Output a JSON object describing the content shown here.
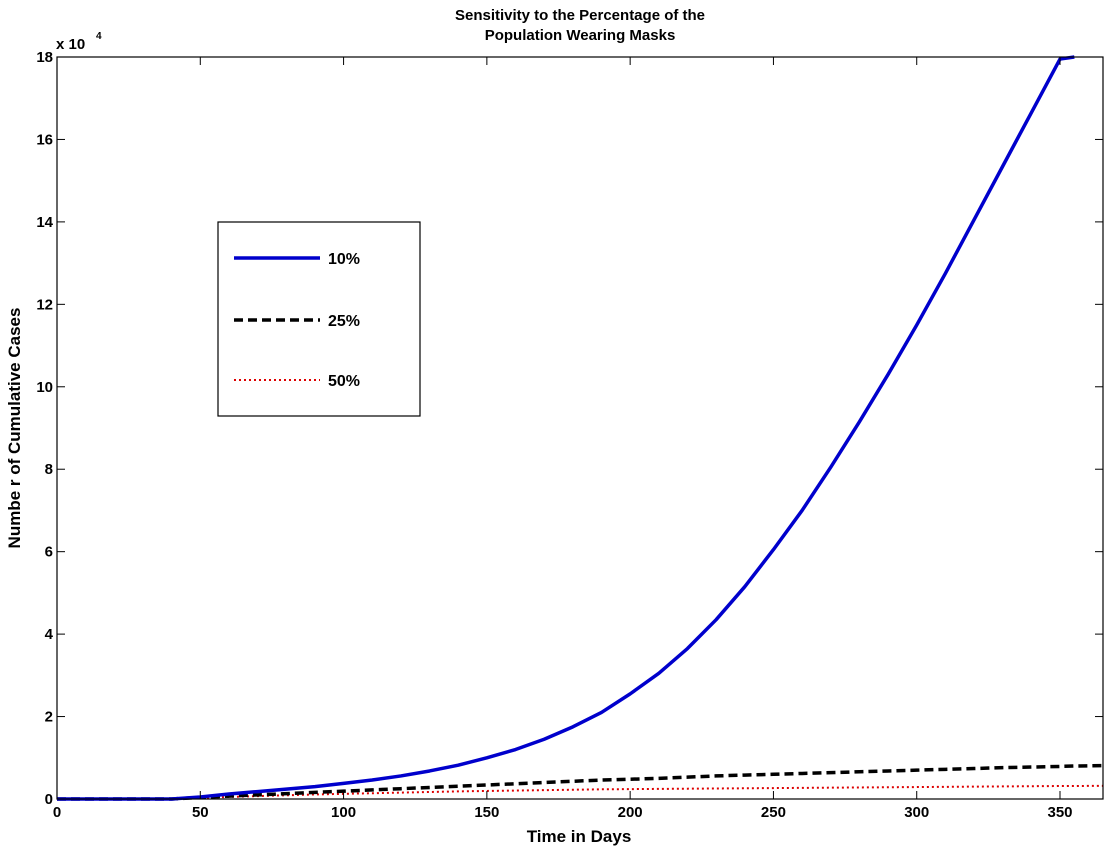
{
  "chart_data": {
    "type": "line",
    "title_lines": [
      "Sensitivity to the Percentage of the",
      "Population Wearing Masks"
    ],
    "xlabel": "Time in Days",
    "ylabel": "Numbe r of Cumulative Cases",
    "y_exponent_label": "x 10",
    "y_exponent_power": "4",
    "y_scale_factor": 10000,
    "xlim": [
      0,
      365
    ],
    "ylim": [
      0,
      180000
    ],
    "x_ticks": [
      0,
      50,
      100,
      150,
      200,
      250,
      300,
      350
    ],
    "x_tick_labels": [
      "0",
      "50",
      "100",
      "150",
      "200",
      "250",
      "300",
      "350"
    ],
    "y_ticks": [
      0,
      20000,
      40000,
      60000,
      80000,
      100000,
      120000,
      140000,
      160000,
      180000
    ],
    "y_tick_labels": [
      "0",
      "2",
      "4",
      "6",
      "8",
      "10",
      "12",
      "14",
      "16",
      "18"
    ],
    "grid": false,
    "legend_position": "upper-left",
    "x": [
      0,
      40,
      50,
      60,
      70,
      80,
      90,
      100,
      110,
      120,
      130,
      140,
      150,
      160,
      170,
      180,
      190,
      200,
      210,
      220,
      230,
      240,
      250,
      260,
      270,
      280,
      290,
      300,
      310,
      320,
      330,
      340,
      350,
      355,
      365
    ],
    "series": [
      {
        "name": "10%",
        "color": "#0000cc",
        "style": "solid",
        "values": [
          0,
          0,
          500,
          1200,
          1800,
          2400,
          3000,
          3800,
          4600,
          5600,
          6800,
          8200,
          10000,
          12000,
          14500,
          17500,
          21000,
          25500,
          30500,
          36500,
          43500,
          51500,
          60500,
          70000,
          80500,
          91500,
          103000,
          115000,
          127500,
          140500,
          153500,
          166500,
          179500,
          180000,
          null
        ]
      },
      {
        "name": "25%",
        "color": "#000000",
        "style": "dashed",
        "values": [
          0,
          0,
          400,
          700,
          1000,
          1300,
          1600,
          1900,
          2200,
          2500,
          2800,
          3100,
          3400,
          3700,
          4000,
          4300,
          4600,
          4800,
          5000,
          5300,
          5600,
          5800,
          6000,
          6200,
          6400,
          6600,
          6800,
          7000,
          7200,
          7400,
          7600,
          7750,
          7900,
          8000,
          8100
        ]
      },
      {
        "name": "50%",
        "color": "#dd0000",
        "style": "dotted",
        "values": [
          0,
          0,
          300,
          500,
          700,
          900,
          1100,
          1250,
          1400,
          1550,
          1700,
          1850,
          1950,
          2050,
          2150,
          2250,
          2350,
          2400,
          2450,
          2500,
          2550,
          2600,
          2650,
          2700,
          2750,
          2800,
          2850,
          2900,
          2950,
          3000,
          3050,
          3100,
          3150,
          3150,
          3200
        ]
      }
    ]
  }
}
